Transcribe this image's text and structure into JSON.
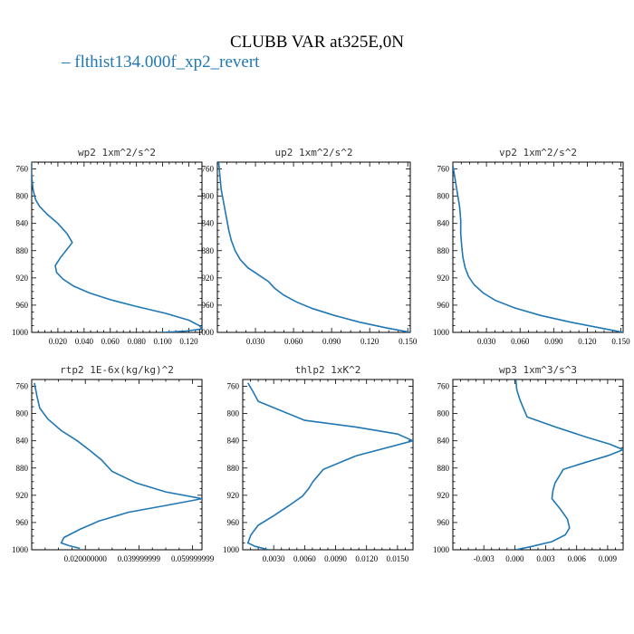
{
  "title": "CLUBB VAR at325E,0N",
  "legend": [
    "flthist134.000f_xp2_revert"
  ],
  "series_color": "#1f77b4",
  "chart_data": [
    {
      "type": "line",
      "title": "wp2  1xm^2/s^2",
      "series_name": "flthist134.000f_xp2_revert",
      "xlim": [
        0,
        0.13
      ],
      "ylim": [
        1000,
        750
      ],
      "xticks": [
        "0.020",
        "0.040",
        "0.060",
        "0.080",
        "0.100",
        "0.120"
      ],
      "xtick_values": [
        0.02,
        0.04,
        0.06,
        0.08,
        0.1,
        0.12
      ],
      "yticks": [
        "760",
        "800",
        "840",
        "880",
        "920",
        "960",
        "1000"
      ],
      "x": [
        0.0,
        0.0,
        0.001,
        0.003,
        0.006,
        0.012,
        0.02,
        0.027,
        0.031,
        0.027,
        0.022,
        0.018,
        0.019,
        0.024,
        0.032,
        0.044,
        0.06,
        0.08,
        0.102,
        0.12,
        0.128,
        0.13,
        0.118,
        0.1
      ],
      "y": [
        750,
        770,
        790,
        805,
        815,
        827,
        840,
        855,
        868,
        878,
        890,
        902,
        912,
        922,
        932,
        942,
        952,
        962,
        972,
        982,
        990,
        995,
        998,
        1000
      ]
    },
    {
      "type": "line",
      "title": "up2  1xm^2/s^2",
      "series_name": "flthist134.000f_xp2_revert",
      "xlim": [
        0,
        0.152
      ],
      "ylim": [
        1000,
        750
      ],
      "xticks": [
        "0.030",
        "0.060",
        "0.090",
        "0.120",
        "0.150"
      ],
      "xtick_values": [
        0.03,
        0.06,
        0.09,
        0.12,
        0.15
      ],
      "yticks": [
        "760",
        "800",
        "840",
        "880",
        "920",
        "960",
        "1000"
      ],
      "x": [
        0.001,
        0.002,
        0.003,
        0.005,
        0.007,
        0.009,
        0.011,
        0.014,
        0.018,
        0.024,
        0.032,
        0.04,
        0.045,
        0.052,
        0.062,
        0.075,
        0.092,
        0.112,
        0.132,
        0.152
      ],
      "y": [
        750,
        770,
        790,
        810,
        830,
        850,
        865,
        880,
        893,
        905,
        915,
        925,
        935,
        945,
        955,
        965,
        975,
        985,
        993,
        1000
      ]
    },
    {
      "type": "line",
      "title": "vp2  1xm^2/s^2",
      "series_name": "flthist134.000f_xp2_revert",
      "xlim": [
        0,
        0.152
      ],
      "ylim": [
        1000,
        750
      ],
      "xticks": [
        "0.030",
        "0.060",
        "0.090",
        "0.120",
        "0.150"
      ],
      "xtick_values": [
        0.03,
        0.06,
        0.09,
        0.12,
        0.15
      ],
      "yticks": [
        "760",
        "800",
        "840",
        "880",
        "920",
        "960",
        "1000"
      ],
      "x": [
        0.0,
        0.002,
        0.004,
        0.006,
        0.007,
        0.007,
        0.008,
        0.009,
        0.011,
        0.014,
        0.019,
        0.027,
        0.038,
        0.055,
        0.078,
        0.105,
        0.13,
        0.152
      ],
      "y": [
        755,
        775,
        795,
        815,
        835,
        855,
        875,
        890,
        905,
        918,
        930,
        942,
        953,
        964,
        975,
        985,
        993,
        1000
      ]
    },
    {
      "type": "line",
      "title": "rtp2  1E-6x(kg/kg)^2",
      "series_name": "flthist134.000f_xp2_revert",
      "xlim": [
        0,
        0.0635
      ],
      "ylim": [
        1000,
        750
      ],
      "xticks": [
        "0.020000000",
        "0.039999999",
        "0.059999999"
      ],
      "xtick_values": [
        0.02,
        0.04,
        0.06
      ],
      "yticks": [
        "760",
        "800",
        "840",
        "880",
        "920",
        "960",
        "1000"
      ],
      "x": [
        0.001,
        0.002,
        0.003,
        0.006,
        0.011,
        0.017,
        0.022,
        0.026,
        0.03,
        0.039,
        0.05,
        0.0635,
        0.05,
        0.036,
        0.025,
        0.018,
        0.012,
        0.011,
        0.014,
        0.018
      ],
      "y": [
        755,
        775,
        792,
        808,
        825,
        840,
        855,
        868,
        885,
        902,
        915,
        925,
        935,
        945,
        958,
        970,
        982,
        990,
        994,
        998
      ]
    },
    {
      "type": "line",
      "title": "thlp2  1xK^2",
      "series_name": "flthist134.000f_xp2_revert",
      "xlim": [
        0,
        0.0165
      ],
      "ylim": [
        1000,
        750
      ],
      "xticks": [
        "0.0030",
        "0.0060",
        "0.0090",
        "0.0120",
        "0.0150"
      ],
      "xtick_values": [
        0.003,
        0.006,
        0.009,
        0.012,
        0.015
      ],
      "yticks": [
        "760",
        "800",
        "840",
        "880",
        "920",
        "960",
        "1000"
      ],
      "x": [
        0.0005,
        0.001,
        0.0015,
        0.006,
        0.011,
        0.015,
        0.0165,
        0.011,
        0.0078,
        0.0068,
        0.0064,
        0.0058,
        0.0045,
        0.003,
        0.0015,
        0.0008,
        0.0005,
        0.0012,
        0.0025
      ],
      "y": [
        755,
        768,
        782,
        810,
        820,
        830,
        840,
        862,
        882,
        900,
        910,
        921,
        935,
        950,
        964,
        978,
        990,
        995,
        1000
      ]
    },
    {
      "type": "line",
      "title": "wp3  1xm^3/s^3",
      "series_name": "flthist134.000f_xp2_revert",
      "xlim": [
        -0.006,
        0.0105
      ],
      "ylim": [
        1000,
        750
      ],
      "xticks": [
        "-0.003",
        "0.000",
        "0.003",
        "0.006",
        "0.009"
      ],
      "xtick_values": [
        -0.003,
        0.0,
        0.003,
        0.006,
        0.009
      ],
      "yticks": [
        "760",
        "800",
        "840",
        "880",
        "920",
        "960",
        "1000"
      ],
      "x": [
        0.0001,
        0.0002,
        0.0005,
        0.0012,
        0.004,
        0.007,
        0.0092,
        0.0105,
        0.009,
        0.0068,
        0.0047,
        0.0039,
        0.0037,
        0.0036,
        0.0044,
        0.0051,
        0.0053,
        0.0049,
        0.0036,
        0.0017,
        0.0001
      ],
      "y": [
        750,
        765,
        780,
        805,
        820,
        835,
        845,
        853,
        862,
        872,
        882,
        902,
        913,
        925,
        940,
        955,
        968,
        978,
        988,
        995,
        1000
      ]
    }
  ]
}
